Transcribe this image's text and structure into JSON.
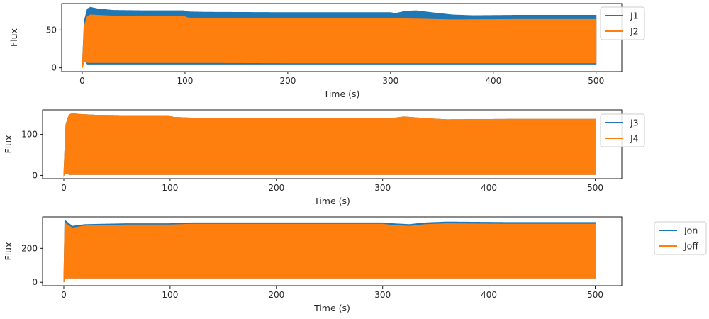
{
  "chart_data": [
    {
      "type": "area",
      "xlabel": "Time (s)",
      "ylabel": "Flux",
      "xlim": [
        -20,
        525
      ],
      "ylim": [
        -5,
        85
      ],
      "xticks": [
        0,
        100,
        200,
        300,
        400,
        500
      ],
      "yticks": [
        0,
        50
      ],
      "legend_placement": "upper-right, outside",
      "series": [
        {
          "name": "J1",
          "color": "#1f77b4",
          "x": [
            0,
            2,
            5,
            8,
            15,
            30,
            60,
            99,
            103,
            120,
            200,
            300,
            305,
            315,
            325,
            340,
            360,
            380,
            420,
            500
          ],
          "y_max": [
            0,
            62,
            78,
            80,
            78,
            76,
            75.5,
            75.5,
            74,
            73.5,
            73,
            73,
            72,
            75,
            75.5,
            73,
            70,
            69,
            69.5,
            69.5
          ],
          "y_min": [
            0,
            10,
            5,
            5,
            5,
            5,
            5,
            5,
            5,
            5,
            5,
            5,
            5,
            5,
            5,
            5,
            5,
            5,
            5,
            5
          ]
        },
        {
          "name": "J2",
          "color": "#ff7f0e",
          "x": [
            0,
            2,
            5,
            8,
            15,
            30,
            60,
            99,
            103,
            120,
            200,
            300,
            305,
            330,
            360,
            420,
            500
          ],
          "y_max": [
            0,
            55,
            68,
            70,
            69.5,
            68.5,
            68,
            68,
            66,
            65,
            65,
            65,
            65,
            64.5,
            63.5,
            64,
            64
          ],
          "y_min": [
            0,
            10,
            7,
            7,
            7,
            7,
            7,
            7,
            7,
            7,
            6.5,
            6.5,
            6.5,
            6.5,
            6.5,
            6.5,
            6.5
          ]
        }
      ]
    },
    {
      "type": "area",
      "xlabel": "Time (s)",
      "ylabel": "Flux",
      "xlim": [
        -20,
        525
      ],
      "ylim": [
        -8,
        160
      ],
      "xticks": [
        0,
        100,
        200,
        300,
        400,
        500
      ],
      "yticks": [
        0,
        100
      ],
      "legend_placement": "upper-right, outside",
      "series": [
        {
          "name": "J3",
          "color": "#1f77b4",
          "x": [
            0,
            2,
            5,
            8,
            15,
            30,
            60,
            99,
            103,
            120,
            200,
            300,
            305,
            320,
            340,
            360,
            420,
            500
          ],
          "y_max": [
            0,
            125,
            148,
            151,
            149,
            147,
            146,
            146,
            142,
            140,
            139,
            139,
            138,
            143,
            139,
            136,
            137,
            137
          ],
          "y_min": [
            0,
            5,
            2,
            2,
            2,
            2,
            2,
            2,
            2,
            2,
            2,
            2,
            2,
            2,
            2,
            2,
            2,
            2
          ]
        },
        {
          "name": "J4",
          "color": "#ff7f0e",
          "x": [
            0,
            2,
            5,
            8,
            15,
            30,
            60,
            99,
            103,
            120,
            200,
            300,
            305,
            320,
            340,
            360,
            420,
            500
          ],
          "y_max": [
            0,
            125,
            148,
            151,
            149,
            147,
            146,
            146,
            142,
            140,
            139,
            139,
            138,
            143,
            139,
            136,
            137,
            137
          ],
          "y_min": [
            0,
            5,
            2,
            2,
            2,
            2,
            2,
            2,
            2,
            2,
            2,
            2,
            2,
            2,
            2,
            2,
            2,
            2
          ]
        }
      ]
    },
    {
      "type": "area",
      "xlabel": "Time (s)",
      "ylabel": "Flux",
      "xlim": [
        -20,
        525
      ],
      "ylim": [
        -20,
        385
      ],
      "xticks": [
        0,
        100,
        200,
        300,
        400,
        500
      ],
      "yticks": [
        0,
        200
      ],
      "legend_placement": "right, outside",
      "series": [
        {
          "name": "Jon",
          "color": "#1f77b4",
          "x": [
            0,
            1,
            3,
            8,
            20,
            60,
            100,
            120,
            200,
            300,
            310,
            325,
            340,
            360,
            420,
            500
          ],
          "y_max": [
            0,
            365,
            355,
            330,
            340,
            345,
            345,
            350,
            350,
            350,
            345,
            340,
            350,
            355,
            352,
            352
          ],
          "y_min": [
            0,
            25,
            25,
            25,
            25,
            25,
            25,
            25,
            25,
            25,
            25,
            25,
            25,
            25,
            25,
            25
          ]
        },
        {
          "name": "Joff",
          "color": "#ff7f0e",
          "x": [
            0,
            1,
            3,
            8,
            20,
            60,
            100,
            120,
            200,
            300,
            310,
            325,
            340,
            360,
            420,
            500
          ],
          "y_max": [
            0,
            350,
            340,
            320,
            332,
            338,
            338,
            342,
            342,
            342,
            335,
            330,
            340,
            345,
            342,
            342
          ],
          "y_min": [
            0,
            25,
            25,
            25,
            25,
            25,
            25,
            25,
            25,
            25,
            25,
            25,
            25,
            25,
            25,
            25
          ]
        }
      ]
    }
  ]
}
